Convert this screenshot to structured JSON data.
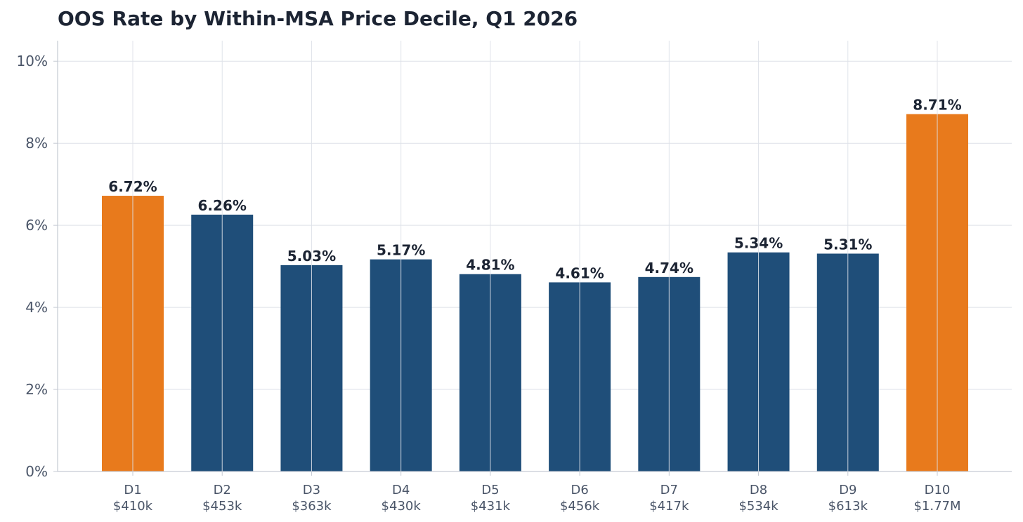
{
  "chart_data": {
    "type": "bar",
    "title": "OOS Rate by Within-MSA Price Decile, Q1 2026",
    "xlabel": "",
    "ylabel": "",
    "ylim": [
      0,
      10.5
    ],
    "y_ticks": [
      {
        "value": 0,
        "label": "0%"
      },
      {
        "value": 2,
        "label": "2%"
      },
      {
        "value": 4,
        "label": "4%"
      },
      {
        "value": 6,
        "label": "6%"
      },
      {
        "value": 8,
        "label": "8%"
      },
      {
        "value": 10,
        "label": "10%"
      }
    ],
    "grid": true,
    "categories": [
      "D1",
      "D2",
      "D3",
      "D4",
      "D5",
      "D6",
      "D7",
      "D8",
      "D9",
      "D10"
    ],
    "category_sublabels": [
      "$410k",
      "$453k",
      "$363k",
      "$430k",
      "$431k",
      "$456k",
      "$417k",
      "$534k",
      "$613k",
      "$1.77M"
    ],
    "values": [
      6.72,
      6.26,
      5.03,
      5.17,
      4.81,
      4.61,
      4.74,
      5.34,
      5.31,
      8.71
    ],
    "data_labels": [
      "6.72%",
      "6.26%",
      "5.03%",
      "5.17%",
      "4.81%",
      "4.61%",
      "4.74%",
      "5.34%",
      "5.31%",
      "8.71%"
    ],
    "highlighted": [
      true,
      false,
      false,
      false,
      false,
      false,
      false,
      false,
      false,
      true
    ],
    "colors": {
      "highlight": "#e87a1c",
      "default": "#1f4e79",
      "grid": "#dde1e8",
      "axis": "#c5cad3"
    }
  }
}
